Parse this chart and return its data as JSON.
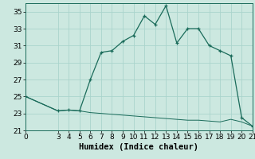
{
  "title": "",
  "xlabel": "Humidex (Indice chaleur)",
  "background_color": "#cce8e0",
  "line_color": "#1a6b5a",
  "grid_color": "#aad4cc",
  "xlim": [
    0,
    21
  ],
  "ylim": [
    21,
    36
  ],
  "xticks": [
    0,
    3,
    4,
    5,
    6,
    7,
    8,
    9,
    10,
    11,
    12,
    13,
    14,
    15,
    16,
    17,
    18,
    19,
    20,
    21
  ],
  "yticks": [
    21,
    23,
    25,
    27,
    29,
    31,
    33,
    35
  ],
  "series1_x": [
    0,
    3,
    4,
    5,
    6,
    7,
    8,
    9,
    10,
    11,
    12,
    13,
    14,
    15,
    16,
    17,
    18,
    19,
    20,
    21
  ],
  "series1_y": [
    25,
    23.3,
    23.4,
    23.3,
    27.0,
    30.2,
    30.4,
    31.5,
    32.2,
    34.5,
    33.5,
    35.7,
    31.3,
    33.0,
    33.0,
    31.0,
    30.4,
    29.8,
    22.5,
    21.5
  ],
  "series2_x": [
    0,
    3,
    4,
    5,
    6,
    7,
    8,
    9,
    10,
    11,
    12,
    13,
    14,
    15,
    16,
    17,
    18,
    19,
    20,
    21
  ],
  "series2_y": [
    25,
    23.3,
    23.4,
    23.3,
    23.1,
    23.0,
    22.9,
    22.8,
    22.7,
    22.6,
    22.5,
    22.4,
    22.3,
    22.2,
    22.2,
    22.1,
    22.0,
    22.3,
    22.0,
    21.5
  ],
  "tick_fontsize": 6.5,
  "xlabel_fontsize": 7.5
}
